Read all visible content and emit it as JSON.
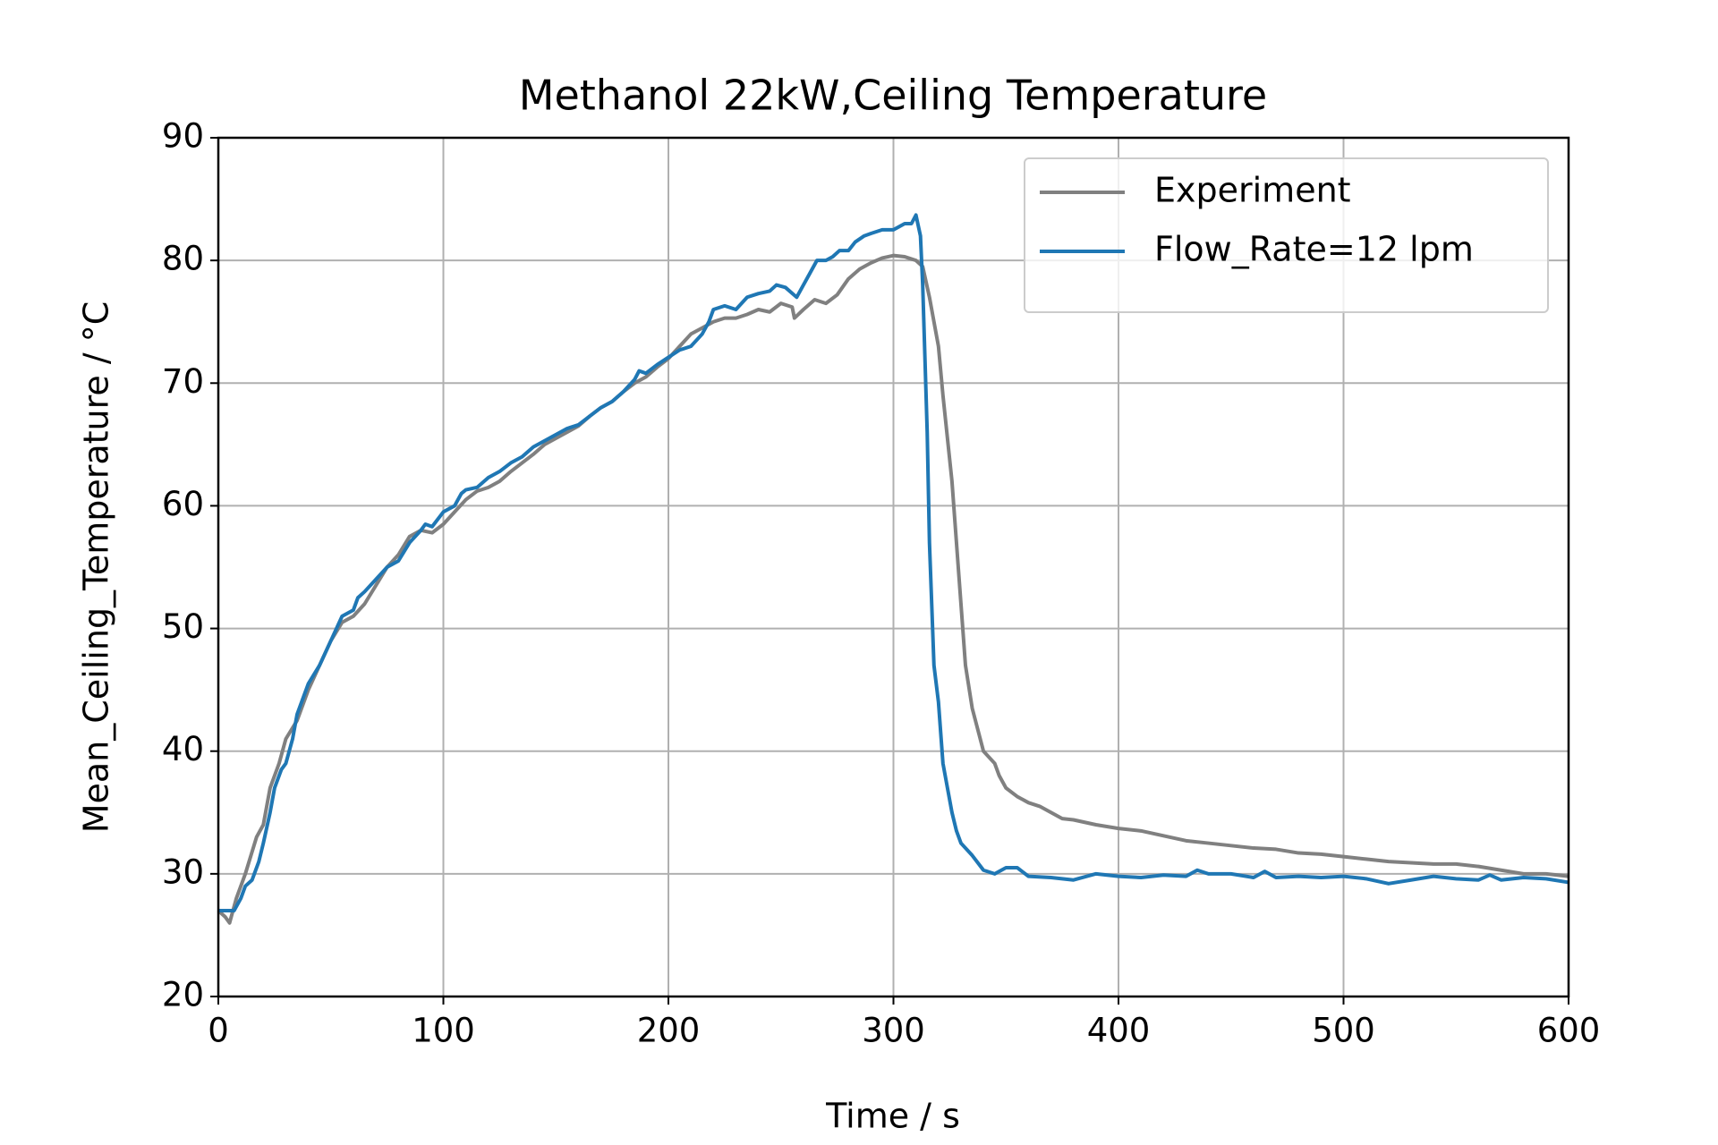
{
  "chart_data": {
    "type": "line",
    "title": "Methanol 22kW,Ceiling Temperature",
    "x_label": "Time / s",
    "y_label": "Mean_Ceiling_Temperature / °C",
    "xlim": [
      0,
      600
    ],
    "xticks": [
      0,
      100,
      200,
      300,
      400,
      500,
      600
    ],
    "ylim": [
      20,
      90
    ],
    "yticks": [
      20,
      30,
      40,
      50,
      60,
      70,
      80,
      90
    ],
    "grid": true,
    "legend": "upper right",
    "series": [
      {
        "name": "Experiment",
        "color": "#808080",
        "x": [
          0,
          3,
          5,
          8,
          12,
          17,
          20,
          23,
          27,
          30,
          35,
          40,
          45,
          50,
          55,
          60,
          65,
          70,
          75,
          80,
          85,
          90,
          95,
          100,
          105,
          110,
          115,
          120,
          125,
          130,
          135,
          140,
          145,
          150,
          155,
          160,
          165,
          170,
          175,
          180,
          185,
          190,
          195,
          200,
          205,
          210,
          215,
          220,
          225,
          230,
          235,
          240,
          245,
          250,
          255,
          256,
          260,
          265,
          270,
          275,
          280,
          285,
          290,
          295,
          300,
          305,
          310,
          313,
          316,
          318,
          320,
          322,
          324,
          326,
          328,
          330,
          332,
          335,
          340,
          345,
          347,
          350,
          355,
          360,
          365,
          370,
          375,
          380,
          390,
          400,
          410,
          420,
          430,
          440,
          450,
          460,
          470,
          480,
          490,
          500,
          510,
          520,
          530,
          540,
          550,
          560,
          570,
          580,
          590,
          600
        ],
        "values": [
          27,
          26.5,
          26,
          28,
          30,
          33,
          34,
          37,
          39,
          41,
          42.5,
          45,
          47,
          49,
          50.5,
          51,
          52,
          53.5,
          55,
          56,
          57.5,
          58,
          57.8,
          58.5,
          59.5,
          60.5,
          61.2,
          61.5,
          62,
          62.8,
          63.5,
          64.2,
          65,
          65.5,
          66,
          66.5,
          67.3,
          68,
          68.5,
          69.3,
          70,
          70.5,
          71.3,
          72,
          73,
          74,
          74.5,
          75,
          75.3,
          75.3,
          75.6,
          76,
          75.8,
          76.5,
          76.2,
          75.3,
          76,
          76.8,
          76.5,
          77.2,
          78.5,
          79.3,
          79.8,
          80.2,
          80.4,
          80.3,
          80,
          79.5,
          77,
          75,
          73,
          69,
          65.5,
          62,
          57,
          52,
          47,
          43.5,
          40,
          39,
          38,
          37,
          36.3,
          35.8,
          35.5,
          35,
          34.5,
          34.4,
          34,
          33.7,
          33.5,
          33.1,
          32.7,
          32.5,
          32.3,
          32.1,
          32,
          31.7,
          31.6,
          31.4,
          31.2,
          31,
          30.9,
          30.8,
          30.8,
          30.6,
          30.3,
          30,
          30,
          29.8
        ]
      },
      {
        "name": "Flow_Rate=12 lpm",
        "color": "#1f77b4",
        "x": [
          0,
          5,
          7,
          10,
          12,
          15,
          18,
          20,
          23,
          25,
          28,
          30,
          33,
          35,
          38,
          40,
          45,
          50,
          55,
          60,
          62,
          65,
          70,
          75,
          80,
          85,
          90,
          92,
          95,
          100,
          105,
          108,
          110,
          115,
          120,
          125,
          130,
          135,
          140,
          145,
          150,
          155,
          160,
          165,
          170,
          175,
          180,
          185,
          187,
          190,
          195,
          200,
          205,
          210,
          215,
          218,
          220,
          225,
          230,
          235,
          240,
          245,
          248,
          252,
          257,
          260,
          263,
          266,
          270,
          273,
          276,
          280,
          283,
          287,
          290,
          295,
          300,
          305,
          308,
          310,
          312,
          313,
          314,
          315,
          316,
          317,
          318,
          320,
          322,
          324,
          326,
          328,
          330,
          335,
          340,
          345,
          350,
          355,
          360,
          370,
          380,
          390,
          400,
          410,
          420,
          430,
          435,
          440,
          450,
          460,
          465,
          470,
          480,
          490,
          500,
          510,
          520,
          530,
          540,
          550,
          560,
          565,
          570,
          580,
          590,
          600
        ],
        "values": [
          27,
          27,
          27,
          28,
          29,
          29.5,
          31,
          32.5,
          35,
          37,
          38.5,
          39,
          41,
          43,
          44.5,
          45.5,
          47,
          49,
          51,
          51.5,
          52.5,
          53,
          54,
          55,
          55.5,
          57,
          58,
          58.5,
          58.3,
          59.5,
          60,
          61,
          61.3,
          61.5,
          62.3,
          62.8,
          63.5,
          64,
          64.8,
          65.3,
          65.8,
          66.3,
          66.6,
          67.3,
          68,
          68.5,
          69.3,
          70.3,
          71,
          70.8,
          71.5,
          72.1,
          72.7,
          73,
          74,
          75,
          76,
          76.3,
          76,
          77,
          77.3,
          77.5,
          78,
          77.8,
          77,
          78,
          79,
          80,
          80,
          80.3,
          80.8,
          80.8,
          81.5,
          82,
          82.2,
          82.5,
          82.5,
          83,
          83,
          83.7,
          82,
          78,
          72,
          66,
          57,
          52,
          47,
          44,
          39,
          37,
          35,
          33.5,
          32.5,
          31.5,
          30.3,
          30,
          30.5,
          30.5,
          29.8,
          29.7,
          29.5,
          30,
          29.8,
          29.7,
          29.9,
          29.8,
          30.3,
          30,
          30,
          29.7,
          30.2,
          29.7,
          29.8,
          29.7,
          29.8,
          29.6,
          29.2,
          29.5,
          29.8,
          29.6,
          29.5,
          29.9,
          29.5,
          29.7,
          29.6,
          29.3
        ]
      }
    ]
  }
}
